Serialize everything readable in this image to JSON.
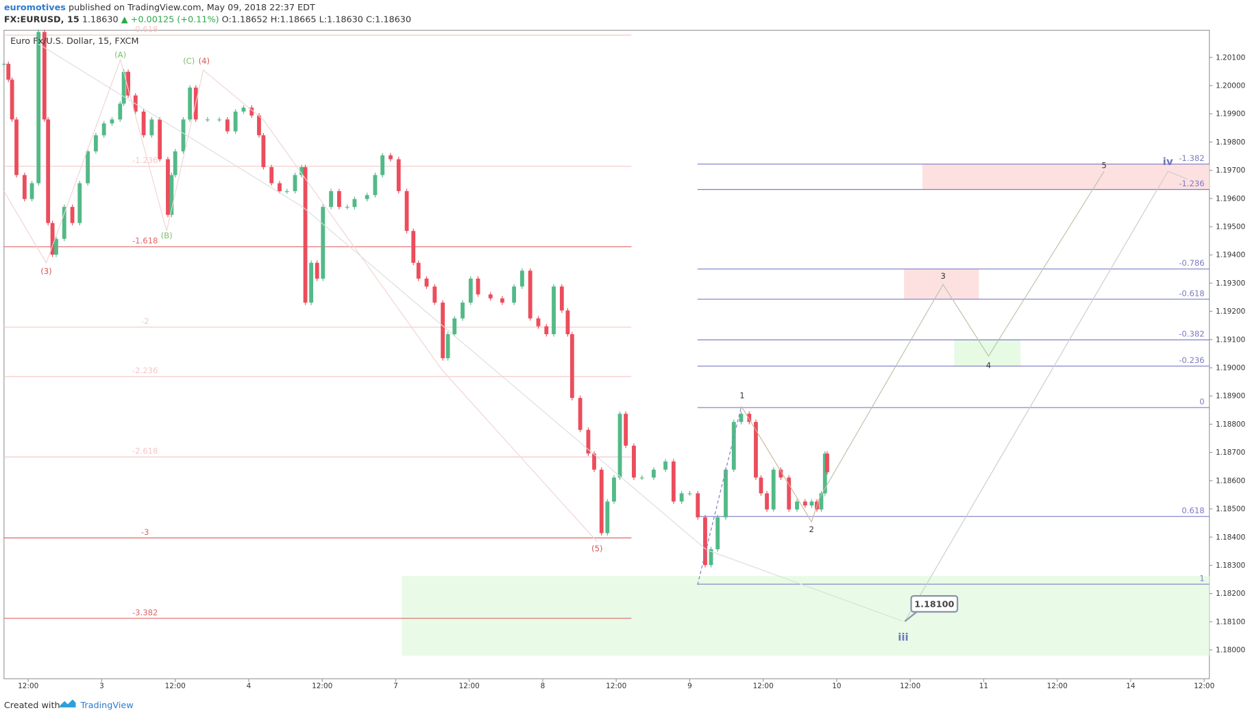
{
  "header": {
    "author": "euromotives",
    "published": "published on TradingView.com, May 09, 2018 22:37 EDT",
    "symbol": "FX:EURUSD, 15",
    "last": "1.18630",
    "change": "▲ +0.00125 (+0.11%)",
    "open": "O:1.18652",
    "high": "H:1.18665",
    "low": "L:1.18630",
    "close": "C:1.18630"
  },
  "footer": {
    "created": "Created with",
    "brand": "TradingView"
  },
  "chart_data": {
    "type": "candlestick",
    "title": "Euro Fx/U.S. Dollar, 15, FXCM",
    "up_color": "#53b987",
    "down_color": "#eb4d5c",
    "x": [
      -0.33,
      -0.27,
      -0.22,
      -0.16,
      -0.05,
      0.05,
      0.14,
      0.22,
      0.27,
      0.33,
      0.38,
      0.49,
      0.6,
      0.7,
      0.81,
      0.92,
      1.03,
      1.14,
      1.25,
      1.3,
      1.36,
      1.46,
      1.57,
      1.68,
      1.79,
      1.9,
      1.95,
      2.0,
      2.11,
      2.2,
      2.28,
      2.44,
      2.6,
      2.71,
      2.82,
      2.93,
      3.04,
      3.14,
      3.2,
      3.31,
      3.42,
      3.52,
      3.63,
      3.72,
      3.77,
      3.85,
      3.93,
      4.01,
      4.12,
      4.23,
      4.34,
      4.44,
      4.61,
      4.72,
      4.82,
      4.93,
      5.04,
      5.15,
      5.24,
      5.31,
      5.42,
      5.53,
      5.64,
      5.71,
      5.8,
      5.91,
      6.02,
      6.12,
      6.29,
      6.45,
      6.61,
      6.72,
      6.83,
      6.94,
      7.05,
      7.15,
      7.26,
      7.34,
      7.4,
      7.51,
      7.62,
      7.7,
      7.8,
      7.88,
      7.97,
      8.05,
      8.13,
      8.24,
      8.35,
      8.51,
      8.67,
      8.78,
      8.89,
      9.0,
      9.11,
      9.21,
      9.29,
      9.38,
      9.49,
      9.6,
      9.7,
      9.81,
      9.9,
      9.97,
      10.05,
      10.14,
      10.24,
      10.35,
      10.46,
      10.57,
      10.66,
      10.73,
      10.79,
      10.84,
      10.87
    ],
    "values": [
      1.20077,
      1.20021,
      1.1988,
      1.19683,
      1.19598,
      1.19654,
      1.2019,
      1.1988,
      1.19513,
      1.19401,
      1.19457,
      1.1957,
      1.19513,
      1.19654,
      1.19767,
      1.19824,
      1.19866,
      1.1988,
      1.19936,
      1.20049,
      1.19965,
      1.19908,
      1.19824,
      1.1988,
      1.19739,
      1.19542,
      1.19683,
      1.19767,
      1.1988,
      1.19993,
      1.1988,
      1.1988,
      1.1988,
      1.19838,
      1.19908,
      1.19922,
      1.19894,
      1.19824,
      1.19711,
      1.19654,
      1.19626,
      1.19626,
      1.19683,
      1.19711,
      1.19231,
      1.19372,
      1.19316,
      1.1957,
      1.19626,
      1.1957,
      1.1957,
      1.19598,
      1.19612,
      1.19683,
      1.19753,
      1.19739,
      1.19626,
      1.19485,
      1.19372,
      1.19316,
      1.19288,
      1.19231,
      1.19034,
      1.19119,
      1.19175,
      1.19231,
      1.19316,
      1.1926,
      1.19246,
      1.19231,
      1.19288,
      1.19344,
      1.19175,
      1.19147,
      1.19119,
      1.19288,
      1.19203,
      1.19119,
      1.18893,
      1.1878,
      1.18696,
      1.18639,
      1.18414,
      1.18526,
      1.18611,
      1.18837,
      1.18724,
      1.18611,
      1.18611,
      1.18639,
      1.18668,
      1.18526,
      1.18555,
      1.18555,
      1.1847,
      1.18301,
      1.18357,
      1.1847,
      1.18639,
      1.18808,
      1.18837,
      1.18808,
      1.18611,
      1.18555,
      1.18498,
      1.18639,
      1.18611,
      1.18498,
      1.18526,
      1.18512,
      1.18526,
      1.18498,
      1.18555,
      1.18696,
      1.1863
    ],
    "xlim": [
      -0.33,
      16.07
    ],
    "xticks": [
      {
        "value": 0,
        "label": "12:00"
      },
      {
        "value": 1,
        "label": "3"
      },
      {
        "value": 2,
        "label": "12:00"
      },
      {
        "value": 3,
        "label": "4"
      },
      {
        "value": 4,
        "label": "12:00"
      },
      {
        "value": 5,
        "label": "7"
      },
      {
        "value": 6,
        "label": "12:00"
      },
      {
        "value": 7,
        "label": "8"
      },
      {
        "value": 8,
        "label": "12:00"
      },
      {
        "value": 9,
        "label": "9"
      },
      {
        "value": 10,
        "label": "12:00"
      },
      {
        "value": 11,
        "label": "10"
      },
      {
        "value": 12,
        "label": "12:00"
      },
      {
        "value": 13,
        "label": "11"
      },
      {
        "value": 14,
        "label": "12:00"
      },
      {
        "value": 15,
        "label": "14"
      },
      {
        "value": 16,
        "label": "12:00"
      }
    ],
    "ylim": [
      1.17898,
      1.20196
    ],
    "yticks": [
      {
        "value": 1.18,
        "label": "1.18000"
      },
      {
        "value": 1.181,
        "label": "1.18100"
      },
      {
        "value": 1.182,
        "label": "1.18200"
      },
      {
        "value": 1.183,
        "label": "1.18300"
      },
      {
        "value": 1.184,
        "label": "1.18400"
      },
      {
        "value": 1.185,
        "label": "1.18500"
      },
      {
        "value": 1.186,
        "label": "1.18600"
      },
      {
        "value": 1.187,
        "label": "1.18700"
      },
      {
        "value": 1.188,
        "label": "1.18800"
      },
      {
        "value": 1.189,
        "label": "1.18900"
      },
      {
        "value": 1.19,
        "label": "1.19000"
      },
      {
        "value": 1.191,
        "label": "1.19100"
      },
      {
        "value": 1.192,
        "label": "1.19200"
      },
      {
        "value": 1.193,
        "label": "1.19300"
      },
      {
        "value": 1.194,
        "label": "1.19400"
      },
      {
        "value": 1.195,
        "label": "1.19500"
      },
      {
        "value": 1.196,
        "label": "1.19600"
      },
      {
        "value": 1.197,
        "label": "1.19700"
      },
      {
        "value": 1.198,
        "label": "1.19800"
      },
      {
        "value": 1.199,
        "label": "1.19900"
      },
      {
        "value": 1.2,
        "label": "1.20000"
      },
      {
        "value": 1.201,
        "label": "1.20100"
      }
    ],
    "fib_left": [
      {
        "label": "-0.618",
        "value": 1.20179,
        "color": "#f4c7c7"
      },
      {
        "label": "-1.236",
        "value": 1.19714,
        "color": "#f4c7c7"
      },
      {
        "label": "-1.618",
        "value": 1.19429,
        "color": "#e06666"
      },
      {
        "label": "-2",
        "value": 1.19144,
        "color": "#f4c7c7"
      },
      {
        "label": "-2.236",
        "value": 1.18969,
        "color": "#f4c7c7"
      },
      {
        "label": "-2.618",
        "value": 1.18684,
        "color": "#f4c7c7"
      },
      {
        "label": "-3",
        "value": 1.18397,
        "color": "#e06666"
      },
      {
        "label": "-3.382",
        "value": 1.18112,
        "color": "#e06666"
      }
    ],
    "fib_right": [
      {
        "label": "-1.382",
        "value": 1.19722
      },
      {
        "label": "-1.236",
        "value": 1.19632
      },
      {
        "label": "-0.786",
        "value": 1.1935
      },
      {
        "label": "-0.618",
        "value": 1.19243
      },
      {
        "label": "-0.382",
        "value": 1.19099
      },
      {
        "label": "-0.236",
        "value": 1.19006
      },
      {
        "label": "0",
        "value": 1.18859
      },
      {
        "label": "0.618",
        "value": 1.18473
      },
      {
        "label": "1",
        "value": 1.18233
      }
    ],
    "fib_right_color": "#7b7bc4",
    "annotations": [
      "(3)",
      "(A)",
      "(B)",
      "(C)",
      "(4)",
      "(5)",
      "1",
      "2",
      "3",
      "4",
      "5",
      "iii",
      "iv",
      "1.18100"
    ]
  }
}
